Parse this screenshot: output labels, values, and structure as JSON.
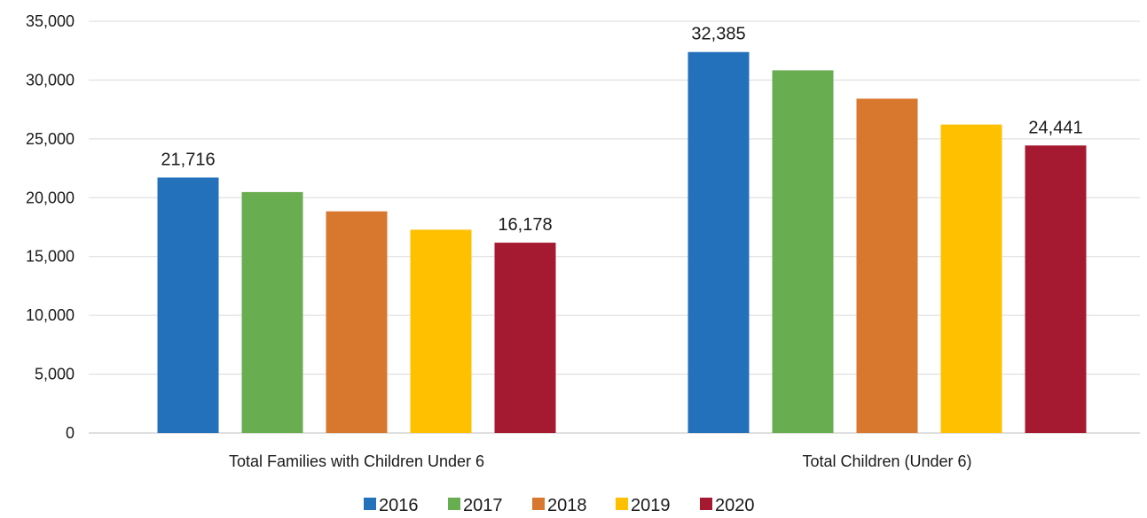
{
  "chart_data": {
    "type": "bar",
    "categories": [
      "Total Families with Children Under 6",
      "Total Children (Under 6)"
    ],
    "series": [
      {
        "name": "2016",
        "color": "#2471BB",
        "values": [
          21716,
          32385
        ]
      },
      {
        "name": "2017",
        "color": "#69AD51",
        "values": [
          20480,
          30830
        ]
      },
      {
        "name": "2018",
        "color": "#D8772E",
        "values": [
          18840,
          28420
        ]
      },
      {
        "name": "2019",
        "color": "#FFC000",
        "values": [
          17280,
          26220
        ]
      },
      {
        "name": "2020",
        "color": "#A51A31",
        "values": [
          16178,
          24441
        ]
      }
    ],
    "data_labels": [
      {
        "series": 0,
        "category": 0,
        "text": "21,716"
      },
      {
        "series": 4,
        "category": 0,
        "text": "16,178"
      },
      {
        "series": 0,
        "category": 1,
        "text": "32,385"
      },
      {
        "series": 4,
        "category": 1,
        "text": "24,441"
      }
    ],
    "yticks": [
      0,
      5000,
      10000,
      15000,
      20000,
      25000,
      30000,
      35000
    ],
    "ytick_labels": [
      "0",
      "5,000",
      "10,000",
      "15,000",
      "20,000",
      "25,000",
      "30,000",
      "35,000"
    ],
    "ylim": [
      0,
      35000
    ],
    "title": "",
    "xlabel": "",
    "ylabel": "",
    "grid": true,
    "legend_position": "bottom"
  }
}
